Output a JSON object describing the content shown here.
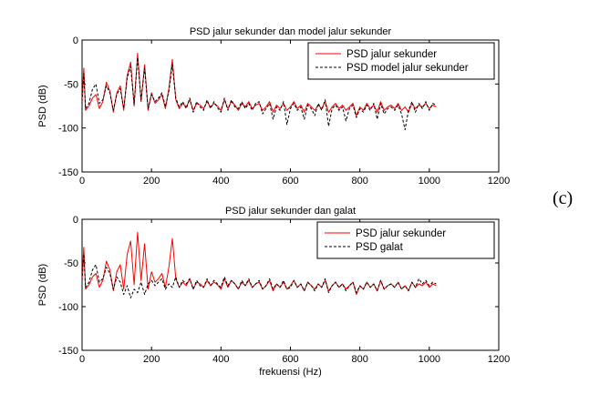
{
  "panel_tag": "(c)",
  "colors": {
    "measured": "#ff0000",
    "secondary": "#000000",
    "frame": "#000000"
  },
  "chart_data": [
    {
      "type": "line",
      "title": "PSD jalur sekunder  dan model jalur sekunder",
      "xlabel": "",
      "ylabel": "PSD (dB)",
      "xlim": [
        0,
        1200
      ],
      "ylim": [
        -150,
        0
      ],
      "xticks": [
        0,
        200,
        400,
        600,
        800,
        1000,
        1200
      ],
      "yticks": [
        -150,
        -100,
        -50,
        0
      ],
      "xtick_labels": [
        "0",
        "200",
        "400",
        "600",
        "800",
        "1000",
        "1200"
      ],
      "ytick_labels": [
        "-150",
        "-100",
        "-50",
        "0"
      ],
      "grid": false,
      "legend_position": "top-right",
      "series": [
        {
          "name": "PSD jalur sekunder",
          "style": "solid",
          "color": "#ff0000",
          "x": [
            0,
            5,
            10,
            20,
            30,
            40,
            50,
            60,
            70,
            80,
            90,
            100,
            110,
            120,
            130,
            140,
            150,
            160,
            170,
            180,
            190,
            200,
            210,
            220,
            230,
            240,
            250,
            260,
            270,
            280,
            290,
            300,
            310,
            320,
            330,
            340,
            350,
            360,
            370,
            380,
            390,
            400,
            410,
            420,
            430,
            440,
            450,
            460,
            470,
            480,
            490,
            500,
            510,
            520,
            530,
            540,
            550,
            560,
            570,
            580,
            590,
            600,
            610,
            620,
            630,
            640,
            650,
            660,
            670,
            680,
            690,
            700,
            710,
            720,
            730,
            740,
            750,
            760,
            770,
            780,
            790,
            800,
            810,
            820,
            830,
            840,
            850,
            860,
            870,
            880,
            890,
            900,
            910,
            920,
            930,
            940,
            950,
            960,
            970,
            980,
            990,
            1000,
            1010,
            1020
          ],
          "y": [
            -68,
            -32,
            -80,
            -75,
            -66,
            -62,
            -78,
            -70,
            -48,
            -58,
            -82,
            -60,
            -52,
            -80,
            -40,
            -25,
            -75,
            -15,
            -70,
            -28,
            -80,
            -60,
            -72,
            -68,
            -62,
            -78,
            -55,
            -22,
            -68,
            -78,
            -72,
            -76,
            -68,
            -80,
            -72,
            -74,
            -78,
            -70,
            -76,
            -72,
            -75,
            -80,
            -68,
            -78,
            -70,
            -74,
            -80,
            -72,
            -76,
            -70,
            -78,
            -74,
            -72,
            -80,
            -76,
            -70,
            -82,
            -74,
            -78,
            -72,
            -80,
            -76,
            -70,
            -78,
            -74,
            -82,
            -72,
            -76,
            -80,
            -74,
            -78,
            -70,
            -82,
            -76,
            -72,
            -78,
            -74,
            -80,
            -76,
            -72,
            -86,
            -76,
            -80,
            -72,
            -78,
            -74,
            -82,
            -70,
            -80,
            -76,
            -74,
            -78,
            -72,
            -80,
            -76,
            -82,
            -72,
            -78,
            -74,
            -76,
            -72,
            -78,
            -74,
            -76
          ]
        },
        {
          "name": "PSD model jalur sekunder",
          "style": "dashed",
          "color": "#000000",
          "x": [
            0,
            5,
            10,
            20,
            30,
            40,
            50,
            60,
            70,
            80,
            90,
            100,
            110,
            120,
            130,
            140,
            150,
            160,
            170,
            180,
            190,
            200,
            210,
            220,
            230,
            240,
            250,
            260,
            270,
            280,
            290,
            300,
            310,
            320,
            330,
            340,
            350,
            360,
            370,
            380,
            390,
            400,
            410,
            420,
            430,
            440,
            450,
            460,
            470,
            480,
            490,
            500,
            510,
            520,
            530,
            540,
            550,
            560,
            570,
            580,
            590,
            600,
            610,
            620,
            630,
            640,
            650,
            660,
            670,
            680,
            690,
            700,
            710,
            720,
            730,
            740,
            750,
            760,
            770,
            780,
            790,
            800,
            810,
            820,
            830,
            840,
            850,
            860,
            870,
            880,
            890,
            900,
            910,
            920,
            930,
            940,
            950,
            960,
            970,
            980,
            990,
            1000,
            1010,
            1020
          ],
          "y": [
            -70,
            -38,
            -78,
            -72,
            -56,
            -50,
            -72,
            -68,
            -52,
            -60,
            -80,
            -62,
            -55,
            -78,
            -43,
            -30,
            -73,
            -20,
            -68,
            -32,
            -78,
            -62,
            -70,
            -66,
            -60,
            -76,
            -58,
            -28,
            -66,
            -76,
            -70,
            -78,
            -66,
            -82,
            -70,
            -76,
            -80,
            -68,
            -78,
            -70,
            -77,
            -82,
            -66,
            -80,
            -68,
            -76,
            -78,
            -70,
            -78,
            -72,
            -80,
            -72,
            -70,
            -84,
            -78,
            -72,
            -90,
            -76,
            -80,
            -70,
            -96,
            -78,
            -72,
            -80,
            -76,
            -90,
            -74,
            -78,
            -86,
            -72,
            -80,
            -68,
            -98,
            -78,
            -74,
            -80,
            -76,
            -92,
            -78,
            -74,
            -88,
            -78,
            -82,
            -74,
            -80,
            -72,
            -90,
            -72,
            -84,
            -78,
            -76,
            -80,
            -74,
            -84,
            -102,
            -80,
            -70,
            -82,
            -72,
            -78,
            -70,
            -80,
            -72,
            -74
          ]
        }
      ]
    },
    {
      "type": "line",
      "title": "PSD jalur sekunder  dan galat",
      "xlabel": "frekuensi (Hz)",
      "ylabel": "PSD (dB)",
      "xlim": [
        0,
        1200
      ],
      "ylim": [
        -150,
        0
      ],
      "xticks": [
        0,
        200,
        400,
        600,
        800,
        1000,
        1200
      ],
      "yticks": [
        -150,
        -100,
        -50,
        0
      ],
      "xtick_labels": [
        "0",
        "200",
        "400",
        "600",
        "800",
        "1000",
        "1200"
      ],
      "ytick_labels": [
        "-150",
        "-100",
        "-50",
        "0"
      ],
      "grid": false,
      "legend_position": "top-right",
      "series": [
        {
          "name": "PSD jalur sekunder",
          "style": "solid",
          "color": "#ff0000",
          "x": [
            0,
            5,
            10,
            20,
            30,
            40,
            50,
            60,
            70,
            80,
            90,
            100,
            110,
            120,
            130,
            140,
            150,
            160,
            170,
            180,
            190,
            200,
            210,
            220,
            230,
            240,
            250,
            260,
            270,
            280,
            290,
            300,
            310,
            320,
            330,
            340,
            350,
            360,
            370,
            380,
            390,
            400,
            410,
            420,
            430,
            440,
            450,
            460,
            470,
            480,
            490,
            500,
            510,
            520,
            530,
            540,
            550,
            560,
            570,
            580,
            590,
            600,
            610,
            620,
            630,
            640,
            650,
            660,
            670,
            680,
            690,
            700,
            710,
            720,
            730,
            740,
            750,
            760,
            770,
            780,
            790,
            800,
            810,
            820,
            830,
            840,
            850,
            860,
            870,
            880,
            890,
            900,
            910,
            920,
            930,
            940,
            950,
            960,
            970,
            980,
            990,
            1000,
            1010,
            1020
          ],
          "y": [
            -68,
            -32,
            -80,
            -75,
            -66,
            -62,
            -78,
            -70,
            -48,
            -58,
            -82,
            -60,
            -52,
            -80,
            -40,
            -25,
            -75,
            -15,
            -70,
            -28,
            -80,
            -60,
            -72,
            -68,
            -62,
            -78,
            -55,
            -22,
            -68,
            -78,
            -72,
            -76,
            -68,
            -80,
            -72,
            -74,
            -78,
            -70,
            -76,
            -72,
            -75,
            -80,
            -68,
            -78,
            -70,
            -74,
            -80,
            -72,
            -76,
            -70,
            -78,
            -74,
            -72,
            -80,
            -76,
            -70,
            -82,
            -74,
            -78,
            -72,
            -80,
            -76,
            -70,
            -78,
            -74,
            -82,
            -72,
            -76,
            -80,
            -74,
            -78,
            -70,
            -82,
            -76,
            -72,
            -78,
            -74,
            -80,
            -76,
            -72,
            -86,
            -76,
            -80,
            -72,
            -78,
            -74,
            -82,
            -70,
            -80,
            -76,
            -74,
            -78,
            -72,
            -80,
            -76,
            -82,
            -72,
            -78,
            -74,
            -76,
            -72,
            -78,
            -74,
            -76
          ]
        },
        {
          "name": "PSD galat",
          "style": "dashed",
          "color": "#000000",
          "x": [
            0,
            5,
            10,
            20,
            30,
            40,
            50,
            60,
            70,
            80,
            90,
            100,
            110,
            120,
            130,
            140,
            150,
            160,
            170,
            180,
            190,
            200,
            210,
            220,
            230,
            240,
            250,
            260,
            270,
            280,
            290,
            300,
            310,
            320,
            330,
            340,
            350,
            360,
            370,
            380,
            390,
            400,
            410,
            420,
            430,
            440,
            450,
            460,
            470,
            480,
            490,
            500,
            510,
            520,
            530,
            540,
            550,
            560,
            570,
            580,
            590,
            600,
            610,
            620,
            630,
            640,
            650,
            660,
            670,
            680,
            690,
            700,
            710,
            720,
            730,
            740,
            750,
            760,
            770,
            780,
            790,
            800,
            810,
            820,
            830,
            840,
            850,
            860,
            870,
            880,
            890,
            900,
            910,
            920,
            930,
            940,
            950,
            960,
            970,
            980,
            990,
            1000,
            1010,
            1020
          ],
          "y": [
            -70,
            -40,
            -78,
            -72,
            -58,
            -52,
            -72,
            -68,
            -55,
            -62,
            -80,
            -66,
            -72,
            -86,
            -76,
            -90,
            -80,
            -84,
            -72,
            -86,
            -74,
            -70,
            -76,
            -72,
            -68,
            -80,
            -74,
            -78,
            -66,
            -78,
            -70,
            -74,
            -68,
            -80,
            -70,
            -76,
            -78,
            -68,
            -76,
            -70,
            -74,
            -78,
            -66,
            -76,
            -70,
            -74,
            -80,
            -70,
            -76,
            -68,
            -78,
            -74,
            -70,
            -80,
            -76,
            -68,
            -80,
            -74,
            -78,
            -70,
            -80,
            -78,
            -70,
            -78,
            -74,
            -82,
            -72,
            -76,
            -82,
            -74,
            -78,
            -68,
            -84,
            -76,
            -72,
            -78,
            -74,
            -82,
            -76,
            -72,
            -84,
            -76,
            -80,
            -72,
            -78,
            -74,
            -82,
            -70,
            -80,
            -76,
            -74,
            -78,
            -72,
            -80,
            -76,
            -82,
            -72,
            -78,
            -68,
            -74,
            -70,
            -76,
            -72,
            -74
          ]
        }
      ]
    }
  ]
}
